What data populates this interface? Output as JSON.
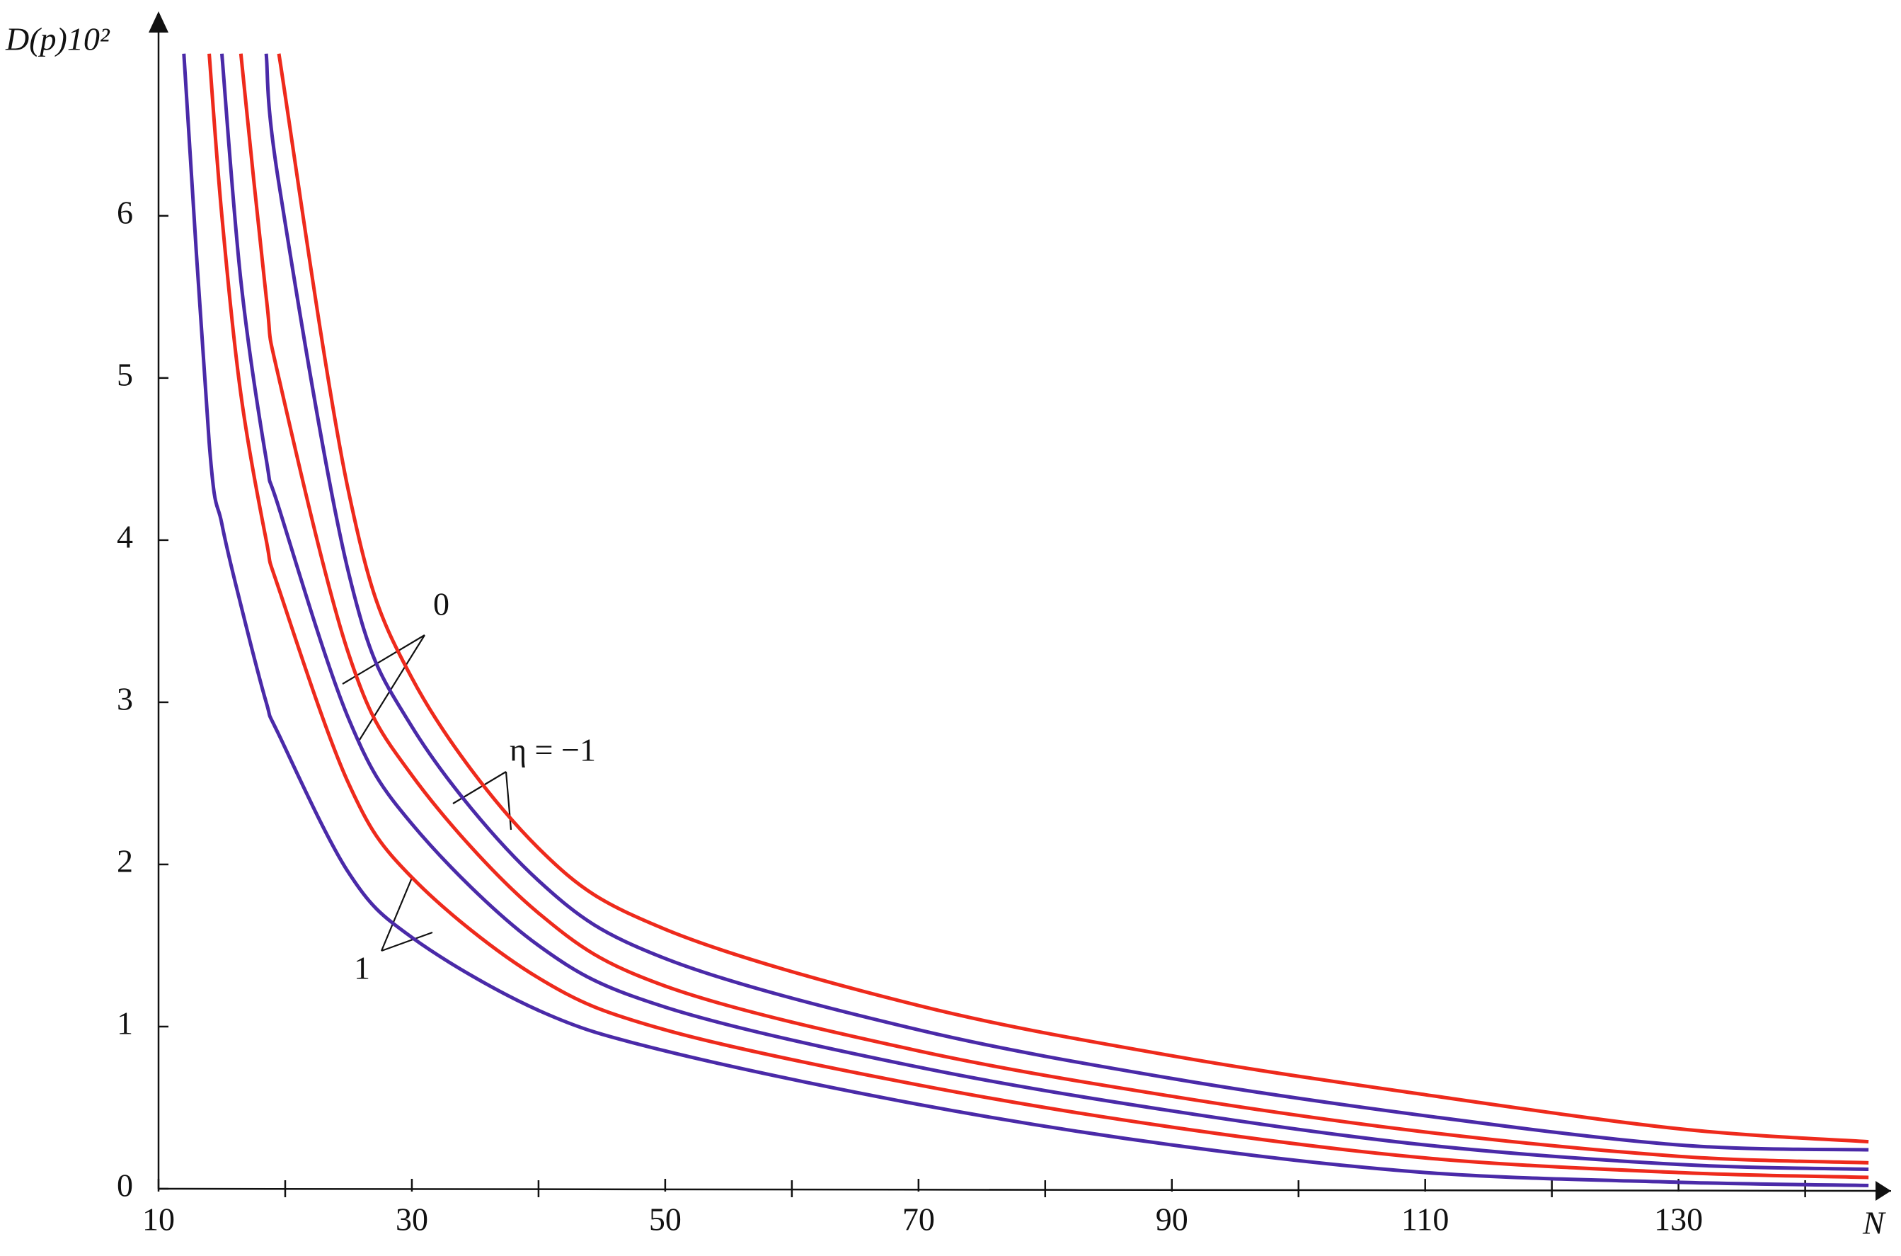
{
  "chart_data": {
    "type": "line",
    "y_label": "D(p)10²",
    "x_label": "N",
    "annotations": [
      "0",
      "η = −1",
      "1"
    ],
    "x": [
      12,
      14,
      15,
      16.5,
      18.5,
      19.5,
      25,
      30,
      40,
      50,
      70,
      90,
      110,
      130,
      145
    ],
    "series": [
      {
        "color": "#4a2aa8",
        "values": [
          7.0,
          4.6,
          4.1,
          3.6,
          3.0,
          2.8,
          1.95,
          1.55,
          1.1,
          0.85,
          0.52,
          0.27,
          0.1,
          0.04,
          0.02
        ]
      },
      {
        "color": "#ee2a1c",
        "values": [
          null,
          7.0,
          6.0,
          4.9,
          4.0,
          3.7,
          2.5,
          1.92,
          1.3,
          0.98,
          0.64,
          0.38,
          0.19,
          0.1,
          0.07
        ]
      },
      {
        "color": "#4a2aa8",
        "values": [
          null,
          null,
          7.0,
          5.6,
          4.5,
          4.2,
          2.9,
          2.25,
          1.5,
          1.12,
          0.75,
          0.48,
          0.27,
          0.15,
          0.12
        ]
      },
      {
        "color": "#ee2a1c",
        "values": [
          null,
          null,
          null,
          7.0,
          5.5,
          5.0,
          3.3,
          2.55,
          1.7,
          1.25,
          0.85,
          0.57,
          0.35,
          0.2,
          0.16
        ]
      },
      {
        "color": "#4a2aa8",
        "values": [
          null,
          null,
          null,
          null,
          7.0,
          6.2,
          3.8,
          2.85,
          1.9,
          1.42,
          0.98,
          0.68,
          0.45,
          0.27,
          0.24
        ]
      },
      {
        "color": "#ee2a1c",
        "values": [
          null,
          null,
          null,
          null,
          null,
          7.0,
          4.3,
          3.15,
          2.1,
          1.6,
          1.13,
          0.82,
          0.58,
          0.37,
          0.29
        ]
      }
    ],
    "xlim": [
      10,
      146
    ],
    "ylim": [
      0,
      7.2
    ],
    "xticks": [
      10,
      30,
      50,
      70,
      90,
      110,
      130
    ],
    "xminorticks": [
      20,
      40,
      60,
      80,
      100,
      120,
      140
    ],
    "yticks": [
      0,
      1,
      2,
      3,
      4,
      5,
      6
    ]
  }
}
